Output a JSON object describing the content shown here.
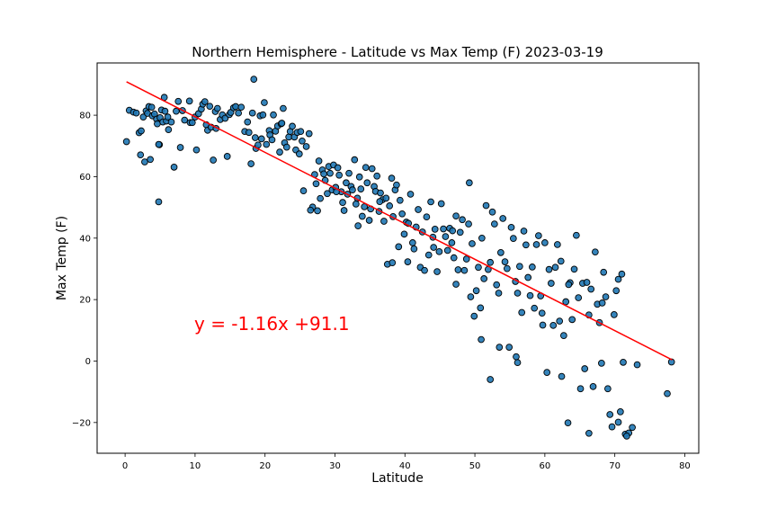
{
  "chart_data": {
    "type": "scatter",
    "title": "Northern Hemisphere - Latitude vs Max Temp (F) 2023-03-19",
    "xlabel": "Latitude",
    "ylabel": "Max Temp (F)",
    "xlim": [
      -4,
      82
    ],
    "ylim": [
      -30,
      97
    ],
    "xticks": [
      0,
      10,
      20,
      30,
      40,
      50,
      60,
      70,
      80
    ],
    "yticks": [
      -20,
      0,
      20,
      40,
      60,
      80
    ],
    "grid": false,
    "point_color": "#1f77b4",
    "point_edge_color": "#000000",
    "regression": {
      "slope": -1.16,
      "intercept": 91.1,
      "x_range": [
        0.2,
        78.2
      ],
      "color": "#ff0000",
      "equation_label": "y = -1.16x +91.1"
    },
    "points": [
      [
        0.2,
        71.4
      ],
      [
        0.6,
        81.6
      ],
      [
        1.2,
        81.0
      ],
      [
        1.6,
        80.7
      ],
      [
        2.0,
        74.3
      ],
      [
        2.3,
        74.9
      ],
      [
        2.2,
        67.1
      ],
      [
        2.6,
        79.4
      ],
      [
        2.8,
        64.8
      ],
      [
        3.0,
        81.4
      ],
      [
        3.2,
        80.6
      ],
      [
        3.4,
        82.8
      ],
      [
        3.6,
        65.6
      ],
      [
        3.8,
        82.6
      ],
      [
        3.9,
        79.8
      ],
      [
        4.2,
        80.4
      ],
      [
        4.5,
        78.7
      ],
      [
        4.6,
        77.2
      ],
      [
        4.8,
        51.8
      ],
      [
        4.9,
        70.4
      ],
      [
        5.0,
        79.2
      ],
      [
        5.2,
        81.7
      ],
      [
        5.4,
        77.8
      ],
      [
        5.6,
        85.8
      ],
      [
        5.7,
        81.3
      ],
      [
        5.9,
        78.1
      ],
      [
        6.1,
        79.4
      ],
      [
        6.2,
        75.3
      ],
      [
        6.6,
        77.8
      ],
      [
        7.0,
        63.1
      ],
      [
        7.3,
        81.3
      ],
      [
        7.6,
        84.5
      ],
      [
        7.9,
        69.5
      ],
      [
        8.2,
        81.5
      ],
      [
        8.5,
        78.4
      ],
      [
        9.2,
        84.6
      ],
      [
        9.3,
        77.6
      ],
      [
        9.6,
        77.6
      ],
      [
        10.0,
        79.4
      ],
      [
        10.2,
        68.7
      ],
      [
        10.5,
        80.5
      ],
      [
        10.9,
        82.0
      ],
      [
        11.1,
        83.6
      ],
      [
        11.4,
        84.4
      ],
      [
        11.6,
        76.9
      ],
      [
        11.8,
        75.1
      ],
      [
        12.1,
        82.9
      ],
      [
        12.3,
        76.1
      ],
      [
        12.6,
        65.4
      ],
      [
        12.9,
        81.2
      ],
      [
        13.2,
        82.2
      ],
      [
        13.6,
        78.6
      ],
      [
        13.9,
        80.1
      ],
      [
        14.3,
        79.0
      ],
      [
        14.6,
        66.6
      ],
      [
        14.9,
        80.2
      ],
      [
        15.1,
        80.9
      ],
      [
        15.5,
        82.4
      ],
      [
        15.8,
        82.8
      ],
      [
        16.2,
        80.7
      ],
      [
        16.6,
        82.6
      ],
      [
        17.1,
        74.7
      ],
      [
        17.5,
        77.8
      ],
      [
        17.7,
        74.4
      ],
      [
        18.0,
        64.2
      ],
      [
        18.2,
        80.7
      ],
      [
        18.4,
        91.7
      ],
      [
        18.6,
        72.7
      ],
      [
        18.7,
        69.2
      ],
      [
        19.0,
        70.3
      ],
      [
        19.3,
        79.8
      ],
      [
        19.5,
        72.3
      ],
      [
        19.9,
        84.1
      ],
      [
        20.2,
        70.5
      ],
      [
        20.6,
        75.0
      ],
      [
        20.7,
        73.6
      ],
      [
        21.0,
        72.0
      ],
      [
        21.2,
        80.1
      ],
      [
        21.5,
        74.8
      ],
      [
        21.8,
        76.5
      ],
      [
        22.1,
        68.0
      ],
      [
        22.3,
        77.2
      ],
      [
        22.6,
        82.2
      ],
      [
        22.8,
        71.0
      ],
      [
        23.1,
        69.6
      ],
      [
        23.4,
        72.9
      ],
      [
        23.6,
        74.7
      ],
      [
        23.9,
        76.4
      ],
      [
        24.2,
        72.9
      ],
      [
        24.4,
        68.7
      ],
      [
        24.6,
        74.4
      ],
      [
        24.9,
        67.4
      ],
      [
        25.1,
        74.7
      ],
      [
        25.3,
        71.6
      ],
      [
        25.5,
        55.4
      ],
      [
        25.9,
        69.8
      ],
      [
        26.3,
        74.0
      ],
      [
        26.8,
        50.1
      ],
      [
        27.1,
        60.7
      ],
      [
        27.3,
        57.7
      ],
      [
        27.5,
        48.9
      ],
      [
        27.7,
        65.1
      ],
      [
        27.9,
        52.9
      ],
      [
        28.2,
        62.2
      ],
      [
        28.4,
        60.9
      ],
      [
        28.6,
        58.8
      ],
      [
        28.9,
        54.5
      ],
      [
        29.1,
        63.3
      ],
      [
        29.3,
        61.1
      ],
      [
        29.6,
        55.7
      ],
      [
        29.8,
        63.8
      ],
      [
        30.1,
        56.5
      ],
      [
        30.4,
        62.9
      ],
      [
        30.6,
        60.5
      ],
      [
        30.9,
        55.1
      ],
      [
        31.1,
        51.6
      ],
      [
        31.3,
        49.0
      ],
      [
        31.6,
        58.0
      ],
      [
        31.8,
        54.3
      ],
      [
        32.0,
        61.1
      ],
      [
        32.3,
        56.8
      ],
      [
        32.5,
        55.7
      ],
      [
        32.8,
        65.5
      ],
      [
        33.0,
        51.1
      ],
      [
        33.2,
        53.0
      ],
      [
        33.5,
        59.9
      ],
      [
        33.7,
        56.0
      ],
      [
        33.9,
        47.1
      ],
      [
        34.2,
        50.2
      ],
      [
        34.4,
        63.0
      ],
      [
        34.6,
        58.0
      ],
      [
        34.9,
        45.8
      ],
      [
        35.1,
        49.5
      ],
      [
        35.3,
        62.6
      ],
      [
        35.6,
        56.8
      ],
      [
        35.8,
        55.2
      ],
      [
        36.0,
        60.2
      ],
      [
        36.3,
        48.7
      ],
      [
        36.5,
        54.7
      ],
      [
        36.8,
        52.5
      ],
      [
        37.0,
        45.5
      ],
      [
        37.3,
        53.0
      ],
      [
        37.5,
        31.5
      ],
      [
        37.8,
        50.5
      ],
      [
        38.1,
        59.5
      ],
      [
        38.3,
        47.0
      ],
      [
        38.6,
        55.7
      ],
      [
        38.8,
        57.3
      ],
      [
        39.1,
        37.2
      ],
      [
        39.3,
        52.3
      ],
      [
        39.6,
        47.9
      ],
      [
        39.9,
        41.3
      ],
      [
        40.2,
        45.2
      ],
      [
        40.5,
        44.8
      ],
      [
        40.8,
        54.3
      ],
      [
        41.1,
        38.5
      ],
      [
        41.3,
        36.5
      ],
      [
        41.6,
        43.6
      ],
      [
        41.9,
        49.3
      ],
      [
        42.2,
        30.5
      ],
      [
        42.5,
        42.0
      ],
      [
        42.8,
        29.5
      ],
      [
        43.1,
        46.9
      ],
      [
        43.4,
        34.5
      ],
      [
        43.7,
        51.8
      ],
      [
        44.0,
        40.3
      ],
      [
        44.3,
        42.9
      ],
      [
        44.6,
        29.1
      ],
      [
        44.9,
        35.6
      ],
      [
        45.2,
        51.2
      ],
      [
        45.5,
        43.0
      ],
      [
        45.8,
        40.5
      ],
      [
        46.1,
        36.0
      ],
      [
        46.4,
        43.2
      ],
      [
        46.7,
        38.5
      ],
      [
        47.0,
        33.6
      ],
      [
        47.3,
        25.0
      ],
      [
        47.6,
        29.7
      ],
      [
        47.9,
        41.9
      ],
      [
        48.2,
        46.0
      ],
      [
        48.5,
        29.5
      ],
      [
        48.8,
        33.2
      ],
      [
        49.1,
        44.6
      ],
      [
        49.4,
        20.9
      ],
      [
        49.6,
        38.2
      ],
      [
        49.9,
        14.6
      ],
      [
        50.2,
        22.9
      ],
      [
        50.5,
        30.5
      ],
      [
        50.8,
        17.3
      ],
      [
        51.0,
        40.0
      ],
      [
        51.3,
        26.8
      ],
      [
        51.6,
        50.6
      ],
      [
        51.9,
        29.8
      ],
      [
        52.2,
        32.1
      ],
      [
        52.5,
        48.5
      ],
      [
        52.8,
        44.6
      ],
      [
        53.1,
        24.8
      ],
      [
        53.4,
        22.1
      ],
      [
        53.7,
        35.3
      ],
      [
        54.0,
        46.4
      ],
      [
        54.3,
        32.3
      ],
      [
        54.6,
        30.1
      ],
      [
        54.9,
        4.5
      ],
      [
        55.2,
        43.5
      ],
      [
        55.5,
        39.9
      ],
      [
        55.8,
        25.9
      ],
      [
        56.1,
        22.1
      ],
      [
        56.4,
        30.8
      ],
      [
        56.7,
        15.8
      ],
      [
        57.0,
        42.3
      ],
      [
        57.3,
        37.8
      ],
      [
        57.6,
        27.2
      ],
      [
        57.9,
        21.3
      ],
      [
        58.2,
        30.6
      ],
      [
        58.5,
        17.2
      ],
      [
        58.8,
        37.9
      ],
      [
        59.1,
        40.8
      ],
      [
        59.4,
        21.2
      ],
      [
        59.7,
        11.7
      ],
      [
        60.0,
        38.5
      ],
      [
        60.3,
        -3.7
      ],
      [
        60.6,
        29.8
      ],
      [
        60.9,
        25.3
      ],
      [
        61.2,
        11.6
      ],
      [
        61.5,
        30.5
      ],
      [
        61.8,
        37.9
      ],
      [
        62.1,
        13.0
      ],
      [
        62.4,
        -5.0
      ],
      [
        62.7,
        8.3
      ],
      [
        63.0,
        19.3
      ],
      [
        63.3,
        -20.1
      ],
      [
        63.6,
        25.5
      ],
      [
        63.9,
        13.5
      ],
      [
        64.2,
        29.9
      ],
      [
        64.5,
        40.9
      ],
      [
        64.8,
        20.6
      ],
      [
        65.1,
        -9.0
      ],
      [
        65.4,
        25.3
      ],
      [
        65.7,
        -2.5
      ],
      [
        66.0,
        25.6
      ],
      [
        66.3,
        15.0
      ],
      [
        66.6,
        23.4
      ],
      [
        66.9,
        -8.3
      ],
      [
        67.2,
        35.5
      ],
      [
        67.5,
        18.5
      ],
      [
        67.8,
        12.5
      ],
      [
        68.1,
        -0.7
      ],
      [
        68.4,
        28.9
      ],
      [
        68.7,
        20.9
      ],
      [
        69.0,
        -9.0
      ],
      [
        69.3,
        -17.4
      ],
      [
        69.6,
        -21.4
      ],
      [
        69.9,
        15.1
      ],
      [
        70.2,
        22.9
      ],
      [
        70.5,
        -19.9
      ],
      [
        70.8,
        -16.5
      ],
      [
        71.0,
        28.3
      ],
      [
        71.2,
        -0.4
      ],
      [
        71.5,
        -23.8
      ],
      [
        72.0,
        -23.4
      ],
      [
        72.5,
        -21.6
      ],
      [
        73.2,
        -1.2
      ],
      [
        77.5,
        -10.6
      ],
      [
        78.1,
        -0.3
      ],
      [
        4.8,
        70.5
      ],
      [
        13.0,
        75.7
      ],
      [
        19.7,
        80.1
      ],
      [
        22.4,
        77.4
      ],
      [
        30.2,
        55.1
      ],
      [
        36.4,
        51.9
      ],
      [
        38.2,
        32.0
      ],
      [
        44.1,
        37.0
      ],
      [
        47.3,
        47.2
      ],
      [
        49.2,
        58.0
      ],
      [
        50.9,
        7.0
      ],
      [
        52.2,
        -6.0
      ],
      [
        56.1,
        -0.5
      ],
      [
        59.6,
        15.6
      ],
      [
        62.3,
        32.5
      ],
      [
        63.4,
        24.9
      ],
      [
        66.3,
        -23.5
      ],
      [
        68.2,
        18.9
      ],
      [
        70.5,
        26.6
      ],
      [
        71.7,
        -24.4
      ],
      [
        26.5,
        49.1
      ],
      [
        33.3,
        44.0
      ],
      [
        40.4,
        32.3
      ],
      [
        46.8,
        42.4
      ],
      [
        53.5,
        4.5
      ],
      [
        55.9,
        1.4
      ]
    ]
  }
}
